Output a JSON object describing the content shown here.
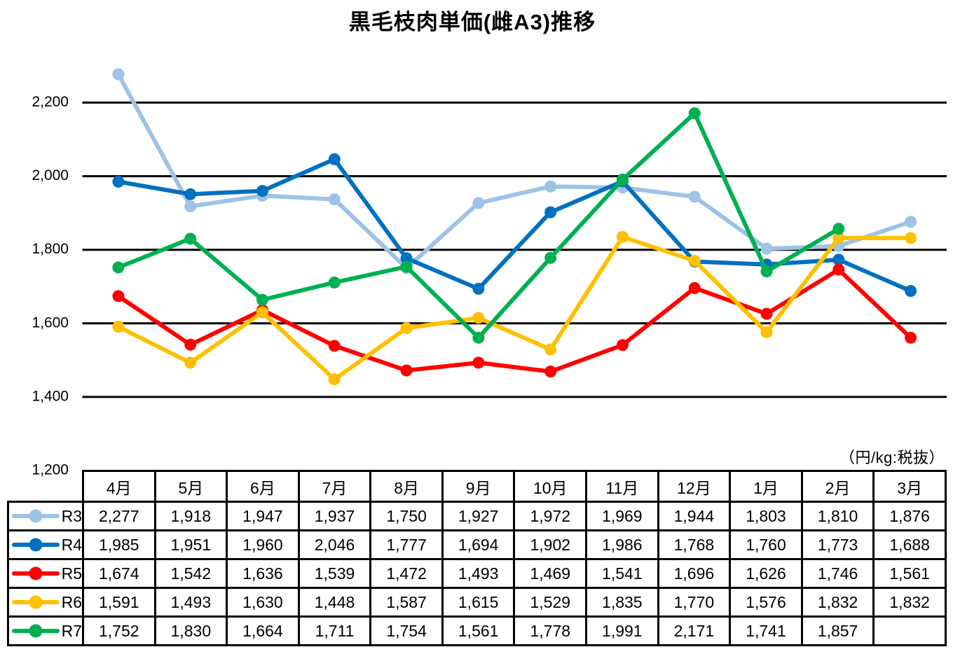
{
  "title": "黒毛枝肉単価(雌A3)推移",
  "unit_note": "（円/kg:税抜）",
  "chart_data": {
    "type": "line",
    "categories": [
      "4月",
      "5月",
      "6月",
      "7月",
      "8月",
      "9月",
      "10月",
      "11月",
      "12月",
      "1月",
      "2月",
      "3月"
    ],
    "series": [
      {
        "name": "R3",
        "color": "#9DC3E6",
        "values": [
          2277,
          1918,
          1947,
          1937,
          1750,
          1927,
          1972,
          1969,
          1944,
          1803,
          1810,
          1876
        ]
      },
      {
        "name": "R4",
        "color": "#0070C0",
        "values": [
          1985,
          1951,
          1960,
          2046,
          1777,
          1694,
          1902,
          1986,
          1768,
          1760,
          1773,
          1688
        ]
      },
      {
        "name": "R5",
        "color": "#FF0000",
        "values": [
          1674,
          1542,
          1636,
          1539,
          1472,
          1493,
          1469,
          1541,
          1696,
          1626,
          1746,
          1561
        ]
      },
      {
        "name": "R6",
        "color": "#FFC000",
        "values": [
          1591,
          1493,
          1630,
          1448,
          1587,
          1615,
          1529,
          1835,
          1770,
          1576,
          1832,
          1832
        ]
      },
      {
        "name": "R7",
        "color": "#00B050",
        "values": [
          1752,
          1830,
          1664,
          1711,
          1754,
          1561,
          1778,
          1991,
          2171,
          1741,
          1857,
          null
        ]
      }
    ],
    "yticks": [
      {
        "value": 1200,
        "label": "1,200"
      },
      {
        "value": 1400,
        "label": "1,400"
      },
      {
        "value": 1600,
        "label": "1,600"
      },
      {
        "value": 1800,
        "label": "1,800"
      },
      {
        "value": 2000,
        "label": "2,000"
      },
      {
        "value": 2200,
        "label": "2,200"
      }
    ],
    "ylim": [
      1200,
      2300
    ],
    "grid": true,
    "gridline_color": "#000000",
    "marker": "circle",
    "legend_position": "table-left",
    "title": "黒毛枝肉単価(雌A3)推移",
    "xlabel": "",
    "ylabel": ""
  }
}
